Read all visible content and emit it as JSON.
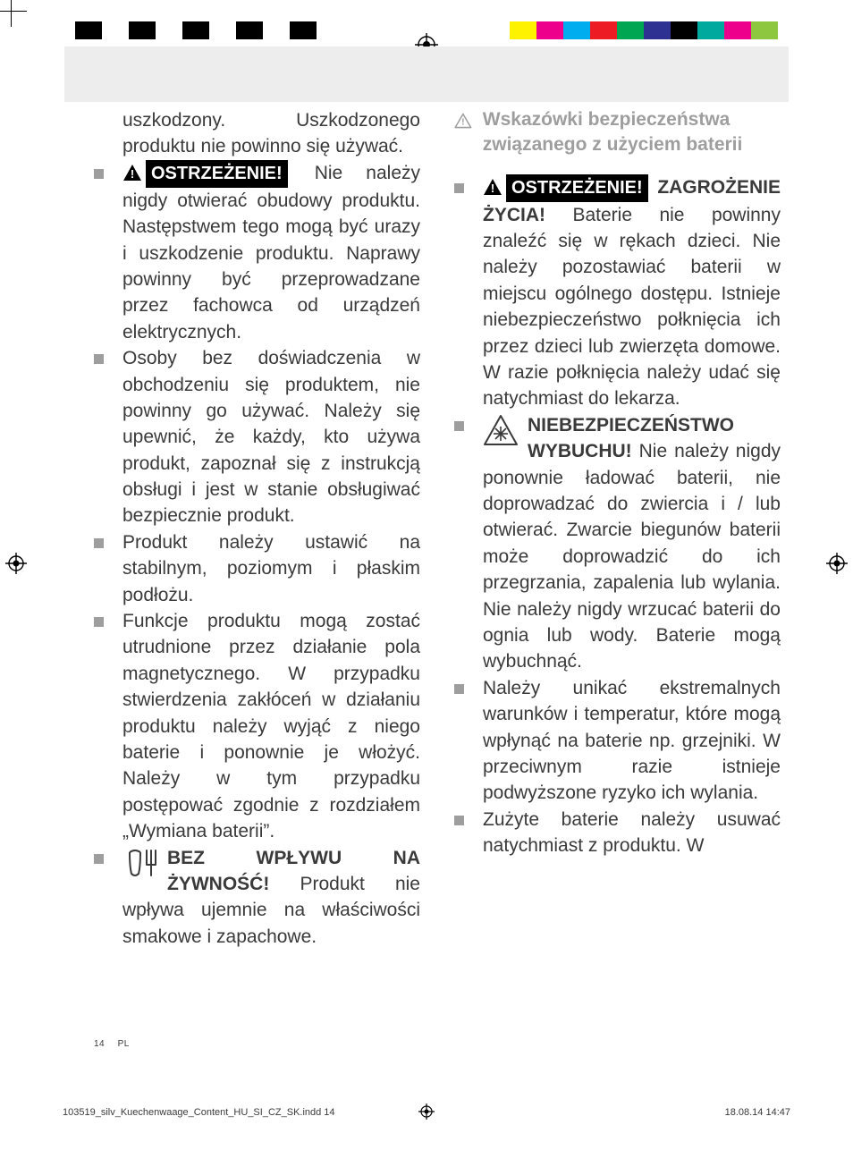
{
  "print": {
    "colors_left": [
      "#000000",
      "#ffffff",
      "#000000",
      "#ffffff",
      "#000000",
      "#ffffff",
      "#000000",
      "#ffffff",
      "#000000",
      "#ffffff"
    ],
    "colors_right": [
      "#fff200",
      "#ec008c",
      "#00aeef",
      "#ed1c24",
      "#00a651",
      "#2e3192",
      "#000000",
      "#00a99d",
      "#ec008c",
      "#8dc63f"
    ]
  },
  "left": {
    "p1": "uszkodzony. Uszkodzonego produktu nie powinno się używać.",
    "li1": {
      "label": "OSTRZEŻENIE!",
      "text": " Nie należy nigdy otwierać obudowy produktu. Następstwem tego mogą być urazy i uszkodzenie produktu. Naprawy powinny być przeprowadzane przez fachowca od urządzeń elektrycznych."
    },
    "li2": "Osoby bez doświadczenia w obchodzeniu się produktem, nie powinny go używać. Należy się upewnić, że każdy, kto używa produkt, zapoznał się z instrukcją obsługi i jest w stanie obsługiwać bezpiecznie produkt.",
    "li3": "Produkt należy ustawić na stabilnym, poziomym i płaskim podłożu.",
    "li4": "Funkcje produktu mogą zostać utrudnione przez działanie pola magnetycznego. W przypadku stwierdzenia zakłóceń w działaniu produktu należy wyjąć z niego baterie i ponownie je włożyć. Należy w tym przypadku postępować zgodnie z rozdziałem „Wymiana baterii”.",
    "li5": {
      "head": "BEZ WPŁYWU NA ŻYWNOŚĆ!",
      "text": " Produkt nie wpływa ujemnie na właściwości smakowe i zapachowe."
    }
  },
  "right": {
    "section_title": "Wskazówki bezpieczeństwa związanego z użyciem baterii",
    "li1": {
      "label": "OSTRZEŻENIE!",
      "head": " ZAGROŻENIE ŻYCIA!",
      "text": " Baterie nie powinny znaleźć się w rękach dzieci. Nie należy pozostawiać baterii w miejscu ogólnego dostępu. Istnieje niebezpieczeństwo połknięcia ich przez dzieci lub zwierzęta domowe. W razie połknięcia należy udać się natychmiast do lekarza."
    },
    "li2": {
      "head": "NIEBEZPIECZEŃSTWO WYBUCHU!",
      "text": " Nie należy nigdy ponownie ładować baterii, nie doprowadzać do zwiercia i / lub otwierać. Zwarcie biegunów baterii może doprowadzić do ich przegrzania, zapalenia lub wylania. Nie należy nigdy wrzucać baterii do ognia lub wody. Baterie mogą wybuchnąć."
    },
    "li3": "Należy unikać ekstremalnych warunków i temperatur, które mogą wpłynąć na baterie np. grzejniki. W przeciwnym razie istnieje podwyższone ryzyko ich wylania.",
    "li4": "Zużyte baterie należy usuwać natychmiast z produktu. W"
  },
  "footer": {
    "page": "14",
    "lang": "PL",
    "slug": "103519_silv_Kuechenwaage_Content_HU_SI_CZ_SK.indd   14",
    "date": "18.08.14   14:47"
  }
}
